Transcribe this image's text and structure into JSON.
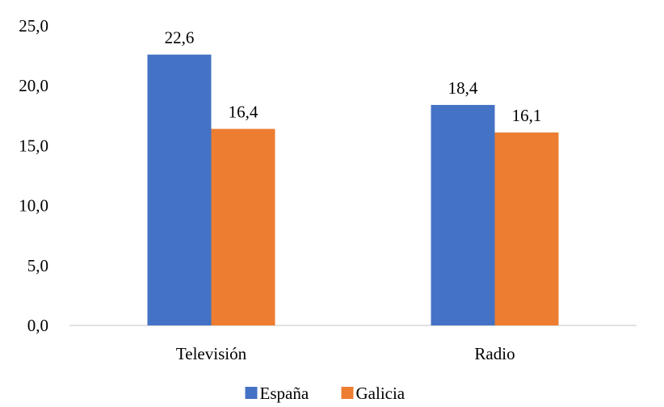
{
  "chart_data": {
    "type": "bar",
    "categories": [
      "Televisión",
      "Radio"
    ],
    "series": [
      {
        "name": "España",
        "values": [
          22.6,
          18.4
        ],
        "labels": [
          "22,6",
          "18,4"
        ],
        "color": "#4472C4"
      },
      {
        "name": "Galicia",
        "values": [
          16.4,
          16.1
        ],
        "labels": [
          "16,4",
          "16,1"
        ],
        "color": "#ED7D31"
      }
    ],
    "yticks": [
      "0,0",
      "5,0",
      "10,0",
      "15,0",
      "20,0",
      "25,0"
    ],
    "ylim": [
      0,
      25
    ],
    "grid": false,
    "legend_position": "bottom-center",
    "title": "",
    "xlabel": "",
    "ylabel": ""
  }
}
